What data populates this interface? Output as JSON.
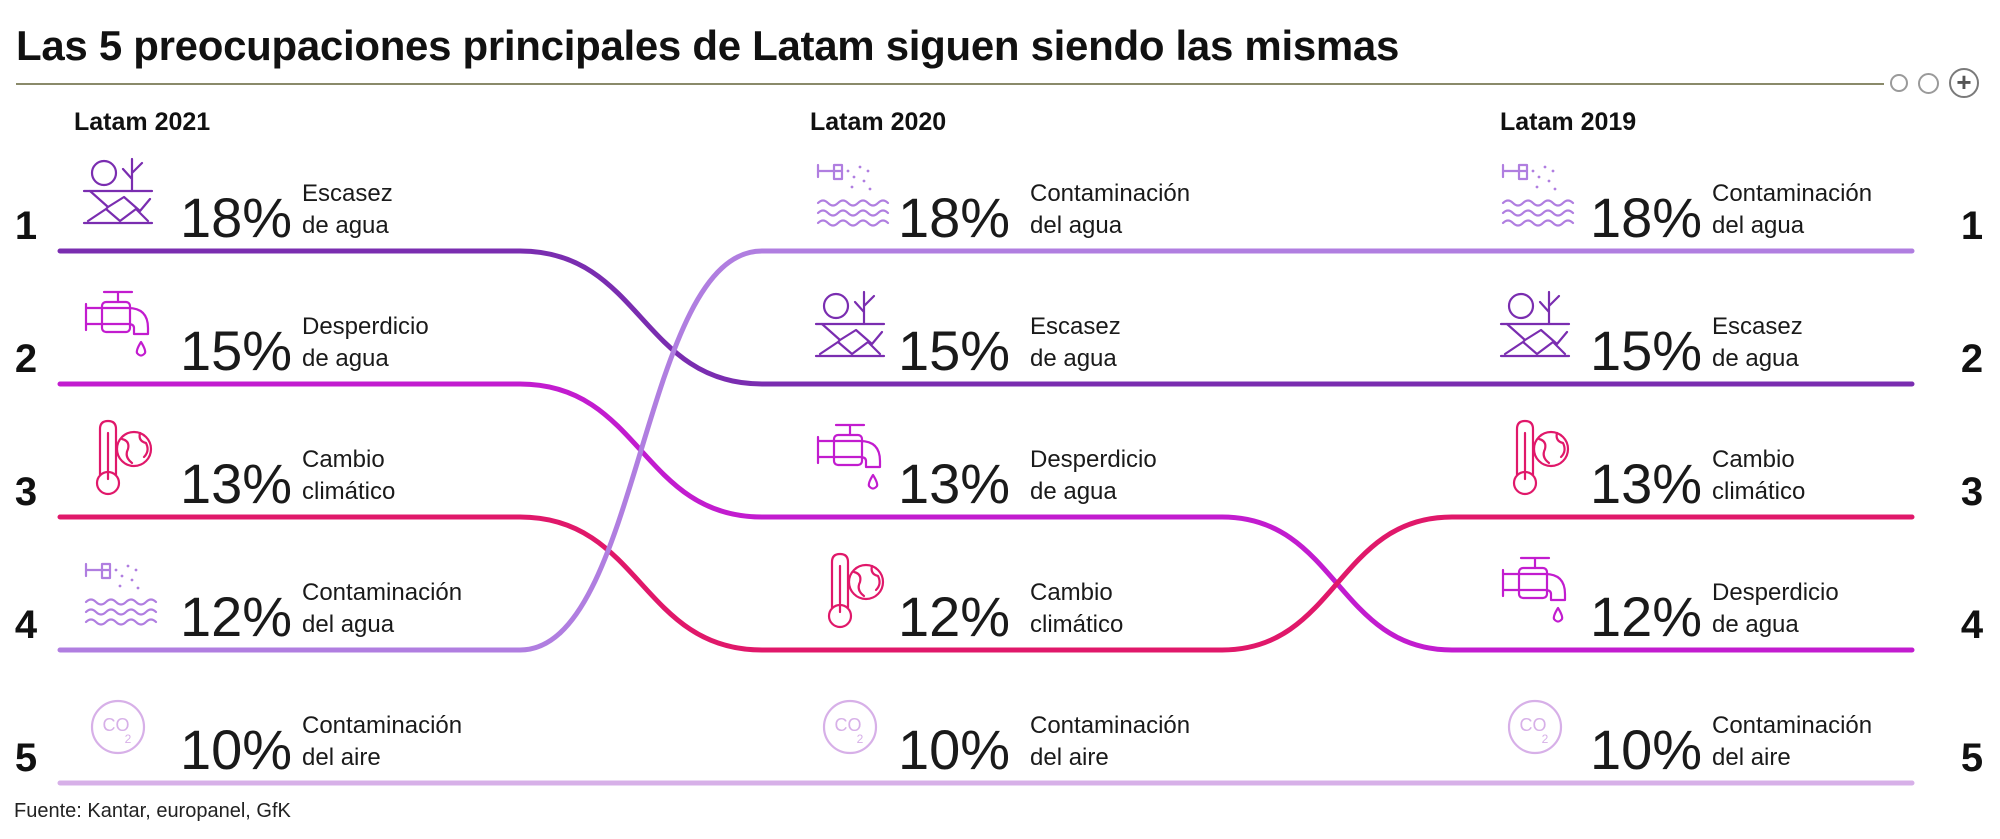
{
  "page": {
    "title": "Las 5 preocupaciones principales de Latam siguen siendo las mismas",
    "source": "Fuente: Kantar, europanel, GfK",
    "expand_button": "+"
  },
  "chart_data": {
    "type": "bump",
    "title": "Las 5 preocupaciones principales de Latam siguen siendo las mismas",
    "rank_labels": [
      "1",
      "2",
      "3",
      "4",
      "5"
    ],
    "columns": [
      {
        "label": "Latam 2021",
        "entries": [
          {
            "rank": 1,
            "topic": "escasez",
            "value": 18,
            "value_label": "18%",
            "label_lines": [
              "Escasez",
              "de agua"
            ],
            "icon": "drought-icon"
          },
          {
            "rank": 2,
            "topic": "desperdicio",
            "value": 15,
            "value_label": "15%",
            "label_lines": [
              "Desperdicio",
              "de agua"
            ],
            "icon": "faucet-drip-icon"
          },
          {
            "rank": 3,
            "topic": "clima",
            "value": 13,
            "value_label": "13%",
            "label_lines": [
              "Cambio",
              "climático"
            ],
            "icon": "thermometer-globe-icon"
          },
          {
            "rank": 4,
            "topic": "contaminacion_agua",
            "value": 12,
            "value_label": "12%",
            "label_lines": [
              "Contaminación",
              "del agua"
            ],
            "icon": "polluted-water-icon"
          },
          {
            "rank": 5,
            "topic": "contaminacion_aire",
            "value": 10,
            "value_label": "10%",
            "label_lines": [
              "Contaminación",
              "del aire"
            ],
            "icon": "co2-icon"
          }
        ]
      },
      {
        "label": "Latam 2020",
        "entries": [
          {
            "rank": 1,
            "topic": "contaminacion_agua",
            "value": 18,
            "value_label": "18%",
            "label_lines": [
              "Contaminación",
              "del agua"
            ],
            "icon": "polluted-water-icon"
          },
          {
            "rank": 2,
            "topic": "escasez",
            "value": 15,
            "value_label": "15%",
            "label_lines": [
              "Escasez",
              "de agua"
            ],
            "icon": "drought-icon"
          },
          {
            "rank": 3,
            "topic": "desperdicio",
            "value": 13,
            "value_label": "13%",
            "label_lines": [
              "Desperdicio",
              "de agua"
            ],
            "icon": "faucet-drip-icon"
          },
          {
            "rank": 4,
            "topic": "clima",
            "value": 12,
            "value_label": "12%",
            "label_lines": [
              "Cambio",
              "climático"
            ],
            "icon": "thermometer-globe-icon"
          },
          {
            "rank": 5,
            "topic": "contaminacion_aire",
            "value": 10,
            "value_label": "10%",
            "label_lines": [
              "Contaminación",
              "del aire"
            ],
            "icon": "co2-icon"
          }
        ]
      },
      {
        "label": "Latam 2019",
        "entries": [
          {
            "rank": 1,
            "topic": "contaminacion_agua",
            "value": 18,
            "value_label": "18%",
            "label_lines": [
              "Contaminación",
              "del agua"
            ],
            "icon": "polluted-water-icon"
          },
          {
            "rank": 2,
            "topic": "escasez",
            "value": 15,
            "value_label": "15%",
            "label_lines": [
              "Escasez",
              "de agua"
            ],
            "icon": "drought-icon"
          },
          {
            "rank": 3,
            "topic": "clima",
            "value": 13,
            "value_label": "13%",
            "label_lines": [
              "Cambio",
              "climático"
            ],
            "icon": "thermometer-globe-icon"
          },
          {
            "rank": 4,
            "topic": "desperdicio",
            "value": 12,
            "value_label": "12%",
            "label_lines": [
              "Desperdicio",
              "de agua"
            ],
            "icon": "faucet-drip-icon"
          },
          {
            "rank": 5,
            "topic": "contaminacion_aire",
            "value": 10,
            "value_label": "10%",
            "label_lines": [
              "Contaminación",
              "del aire"
            ],
            "icon": "co2-icon"
          }
        ]
      }
    ],
    "colors": {
      "escasez": "#7a2db0",
      "desperdicio": "#c21ccf",
      "clima": "#e0186a",
      "contaminacion_agua": "#b07ee0",
      "contaminacion_aire": "#d7b0e8"
    },
    "title_rule_color": "#8a8a6a"
  }
}
